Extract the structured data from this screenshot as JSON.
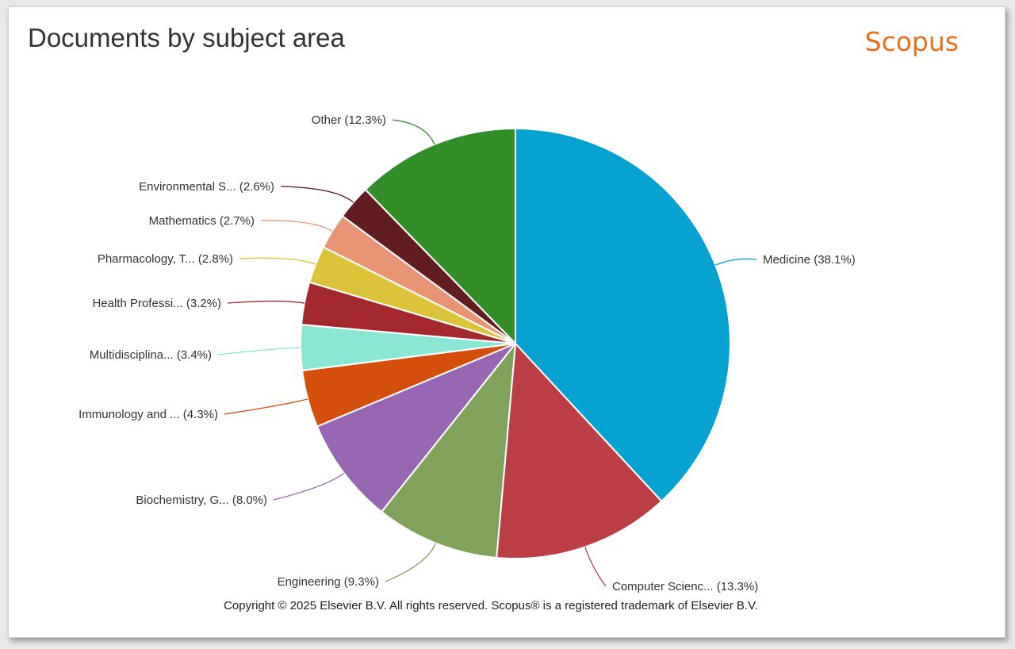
{
  "header": {
    "title": "Documents by subject area",
    "brand": "Scopus"
  },
  "footer": {
    "copyright": "Copyright © 2025 Elsevier B.V. All rights reserved. Scopus® is a registered trademark of Elsevier B.V."
  },
  "chart_data": {
    "type": "pie",
    "title": "Documents by subject area",
    "unit": "%",
    "slices": [
      {
        "label": "Medicine (38.1%)",
        "value": 38.1,
        "color": "#06a2d1"
      },
      {
        "label": "Computer Scienc... (13.3%)",
        "value": 13.3,
        "color": "#bb3f44"
      },
      {
        "label": "Engineering (9.3%)",
        "value": 9.3,
        "color": "#81a25a"
      },
      {
        "label": "Biochemistry, G... (8.0%)",
        "value": 8.0,
        "color": "#9767b3"
      },
      {
        "label": "Immunology and ... (4.3%)",
        "value": 4.3,
        "color": "#d54f0c"
      },
      {
        "label": "Multidisciplina... (3.4%)",
        "value": 3.4,
        "color": "#8be7d3"
      },
      {
        "label": "Health Professi... (3.2%)",
        "value": 3.2,
        "color": "#a4292f"
      },
      {
        "label": "Pharmacology, T... (2.8%)",
        "value": 2.8,
        "color": "#dcc43a"
      },
      {
        "label": "Mathematics (2.7%)",
        "value": 2.7,
        "color": "#e79575"
      },
      {
        "label": "Environmental S... (2.6%)",
        "value": 2.6,
        "color": "#621d20"
      },
      {
        "label": "Other (12.3%)",
        "value": 12.3,
        "color": "#328e28"
      }
    ]
  }
}
